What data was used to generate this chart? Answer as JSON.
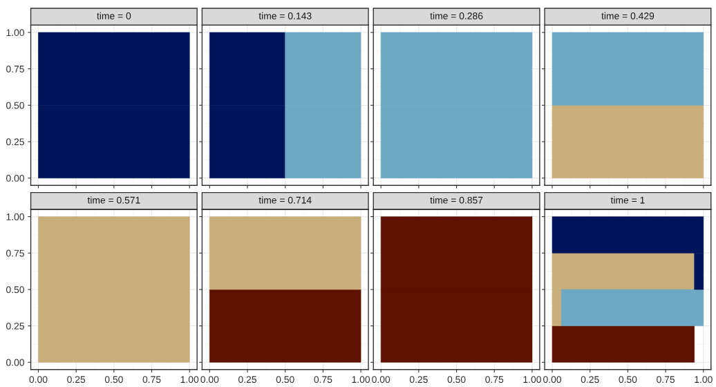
{
  "chart_data": [
    {
      "type": "bar",
      "orientation": "horizontal",
      "title": "time = 0",
      "x": [
        0.25,
        0.75
      ],
      "xlim": [
        -0.05,
        1.05
      ],
      "ylim": [
        -0.05,
        1.05
      ],
      "xticks": [
        0,
        0.25,
        0.5,
        0.75,
        1
      ],
      "yticks": [
        {
          "value": 0,
          "label": "0.00"
        },
        {
          "value": 0.25,
          "label": "0.25"
        },
        {
          "value": 0.5,
          "label": "0.50"
        },
        {
          "value": 0.75,
          "label": "0.75"
        },
        {
          "value": 1,
          "label": "1.00"
        }
      ],
      "grid": true,
      "tick_labels": "y",
      "series": [
        {
          "color": "#00145a",
          "values": [
            1,
            1
          ],
          "base": [
            0,
            0
          ]
        }
      ]
    },
    {
      "type": "bar",
      "orientation": "horizontal",
      "title": "time = 0.143",
      "x": [
        0.25,
        0.75
      ],
      "xlim": [
        -0.05,
        1.05
      ],
      "ylim": [
        -0.05,
        1.05
      ],
      "xticks": [
        0,
        0.25,
        0.5,
        0.75,
        1
      ],
      "yticks": [
        0,
        0.25,
        0.5,
        0.75,
        1
      ],
      "grid": true,
      "tick_labels": false,
      "series": [
        {
          "color": "#00145a",
          "values": [
            0.5,
            0.5
          ],
          "base": [
            0,
            0
          ]
        },
        {
          "color": "#6fa8c3",
          "values": [
            0.5,
            0.5
          ],
          "base": [
            0.5,
            0.5
          ]
        }
      ]
    },
    {
      "type": "bar",
      "orientation": "horizontal",
      "title": "time = 0.286",
      "x": [
        0.25,
        0.75
      ],
      "xlim": [
        -0.05,
        1.05
      ],
      "ylim": [
        -0.05,
        1.05
      ],
      "xticks": [
        0,
        0.25,
        0.5,
        0.75,
        1
      ],
      "yticks": [
        0,
        0.25,
        0.5,
        0.75,
        1
      ],
      "grid": true,
      "tick_labels": false,
      "series": [
        {
          "color": "#6fa8c3",
          "values": [
            1,
            1
          ],
          "base": [
            0,
            0
          ]
        }
      ]
    },
    {
      "type": "bar",
      "orientation": "horizontal",
      "title": "time = 0.429",
      "x": [
        0.25,
        0.75
      ],
      "xlim": [
        -0.05,
        1.05
      ],
      "ylim": [
        -0.05,
        1.05
      ],
      "xticks": [
        0,
        0.25,
        0.5,
        0.75,
        1
      ],
      "yticks": [
        0,
        0.25,
        0.5,
        0.75,
        1
      ],
      "grid": true,
      "tick_labels": false,
      "series": [
        {
          "color": "#c8ae7a",
          "values": [
            1,
            null
          ],
          "base": [
            0,
            null
          ]
        },
        {
          "color": "#6fa8c3",
          "values": [
            null,
            1
          ],
          "base": [
            null,
            0
          ]
        }
      ]
    },
    {
      "type": "bar",
      "orientation": "horizontal",
      "title": "time = 0.571",
      "x": [
        0.25,
        0.75
      ],
      "xlim": [
        -0.05,
        1.05
      ],
      "ylim": [
        -0.05,
        1.05
      ],
      "xticks": [
        {
          "value": 0,
          "label": "0.00"
        },
        {
          "value": 0.25,
          "label": "0.25"
        },
        {
          "value": 0.5,
          "label": "0.50"
        },
        {
          "value": 0.75,
          "label": "0.75"
        },
        {
          "value": 1,
          "label": "1.00"
        }
      ],
      "yticks": [
        {
          "value": 0,
          "label": "0.00"
        },
        {
          "value": 0.25,
          "label": "0.25"
        },
        {
          "value": 0.5,
          "label": "0.50"
        },
        {
          "value": 0.75,
          "label": "0.75"
        },
        {
          "value": 1,
          "label": "1.00"
        }
      ],
      "grid": true,
      "series": [
        {
          "color": "#c8ae7a",
          "values": [
            1,
            1
          ],
          "base": [
            0,
            0
          ]
        }
      ]
    },
    {
      "type": "bar",
      "orientation": "horizontal",
      "title": "time = 0.714",
      "x": [
        0.25,
        0.75
      ],
      "xlim": [
        -0.05,
        1.05
      ],
      "ylim": [
        -0.05,
        1.05
      ],
      "xticks": [
        {
          "value": 0,
          "label": "0.00"
        },
        {
          "value": 0.25,
          "label": "0.25"
        },
        {
          "value": 0.5,
          "label": "0.50"
        },
        {
          "value": 0.75,
          "label": "0.75"
        },
        {
          "value": 1,
          "label": "1.00"
        }
      ],
      "yticks": [
        0,
        0.25,
        0.5,
        0.75,
        1
      ],
      "grid": true,
      "tick_labels": "x",
      "series": [
        {
          "color": "#5e1100",
          "values": [
            1,
            null
          ],
          "base": [
            0,
            null
          ]
        },
        {
          "color": "#c8ae7a",
          "values": [
            null,
            1
          ],
          "base": [
            null,
            0
          ]
        }
      ]
    },
    {
      "type": "bar",
      "orientation": "horizontal",
      "title": "time = 0.857",
      "x": [
        0.25,
        0.75
      ],
      "xlim": [
        -0.05,
        1.05
      ],
      "ylim": [
        -0.05,
        1.05
      ],
      "xticks": [
        {
          "value": 0,
          "label": "0.00"
        },
        {
          "value": 0.25,
          "label": "0.25"
        },
        {
          "value": 0.5,
          "label": "0.50"
        },
        {
          "value": 0.75,
          "label": "0.75"
        },
        {
          "value": 1,
          "label": "1.00"
        }
      ],
      "yticks": [
        0,
        0.25,
        0.5,
        0.75,
        1
      ],
      "grid": true,
      "tick_labels": "x",
      "series": [
        {
          "color": "#5e1100",
          "values": [
            1,
            1
          ],
          "base": [
            0,
            0
          ]
        }
      ]
    },
    {
      "type": "bar",
      "orientation": "horizontal",
      "title": "time = 1",
      "x": [
        0.125,
        0.375,
        0.625,
        0.875
      ],
      "xlim": [
        -0.05,
        1.05
      ],
      "ylim": [
        -0.05,
        1.05
      ],
      "xticks": [
        {
          "value": 0,
          "label": "0.00"
        },
        {
          "value": 0.25,
          "label": "0.25"
        },
        {
          "value": 0.5,
          "label": "0.50"
        },
        {
          "value": 0.75,
          "label": "0.75"
        },
        {
          "value": 1,
          "label": "1.00"
        }
      ],
      "yticks": [
        0,
        0.25,
        0.5,
        0.75,
        1
      ],
      "grid": true,
      "tick_labels": "x",
      "series": [
        {
          "color": "#5e1100",
          "values": [
            0.94,
            null,
            null,
            null
          ],
          "base": [
            0,
            null,
            null,
            null
          ]
        },
        {
          "color": "#c8ae7a",
          "values": [
            null,
            0.06,
            0.94,
            null
          ],
          "base": [
            null,
            0,
            0,
            null
          ]
        },
        {
          "color": "#6fa8c3",
          "values": [
            null,
            0.94,
            null,
            null
          ],
          "base": [
            null,
            0.06,
            null,
            null
          ]
        },
        {
          "color": "#00145a",
          "values": [
            null,
            null,
            0.06,
            1
          ],
          "base": [
            null,
            null,
            0.94,
            0
          ]
        }
      ]
    }
  ]
}
